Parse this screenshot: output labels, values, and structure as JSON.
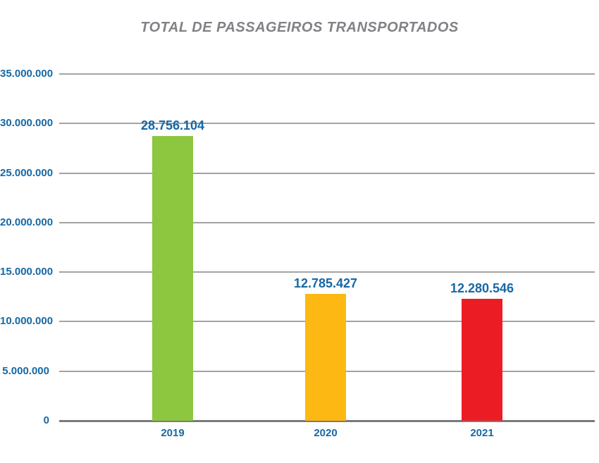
{
  "chart_data": {
    "type": "bar",
    "title": "TOTAL DE PASSAGEIROS TRANSPORTADOS",
    "categories": [
      "2019",
      "2020",
      "2021"
    ],
    "values": [
      28756104,
      12785427,
      12280546
    ],
    "value_labels": [
      "28.756.104",
      "12.785.427",
      "12.280.546"
    ],
    "bar_colors": [
      "#8DC63F",
      "#FDB813",
      "#EC1C24"
    ],
    "xlabel": "",
    "ylabel": "",
    "ylim": [
      0,
      35000000
    ],
    "ytick_step": 5000000,
    "yticks": [
      0,
      5000000,
      10000000,
      15000000,
      20000000,
      25000000,
      30000000,
      35000000
    ],
    "ytick_labels": [
      "0",
      "5.000.000",
      "10.000.000",
      "15.000.000",
      "20.000.000",
      "25.000.000",
      "30.000.000",
      "35.000.000"
    ],
    "grid": "horizontal",
    "legend": "none",
    "colors": {
      "label_text": "#1668A5",
      "title_text": "#808285",
      "gridline": "#A3A3A3",
      "axis_line": "#7A7A7A"
    }
  }
}
